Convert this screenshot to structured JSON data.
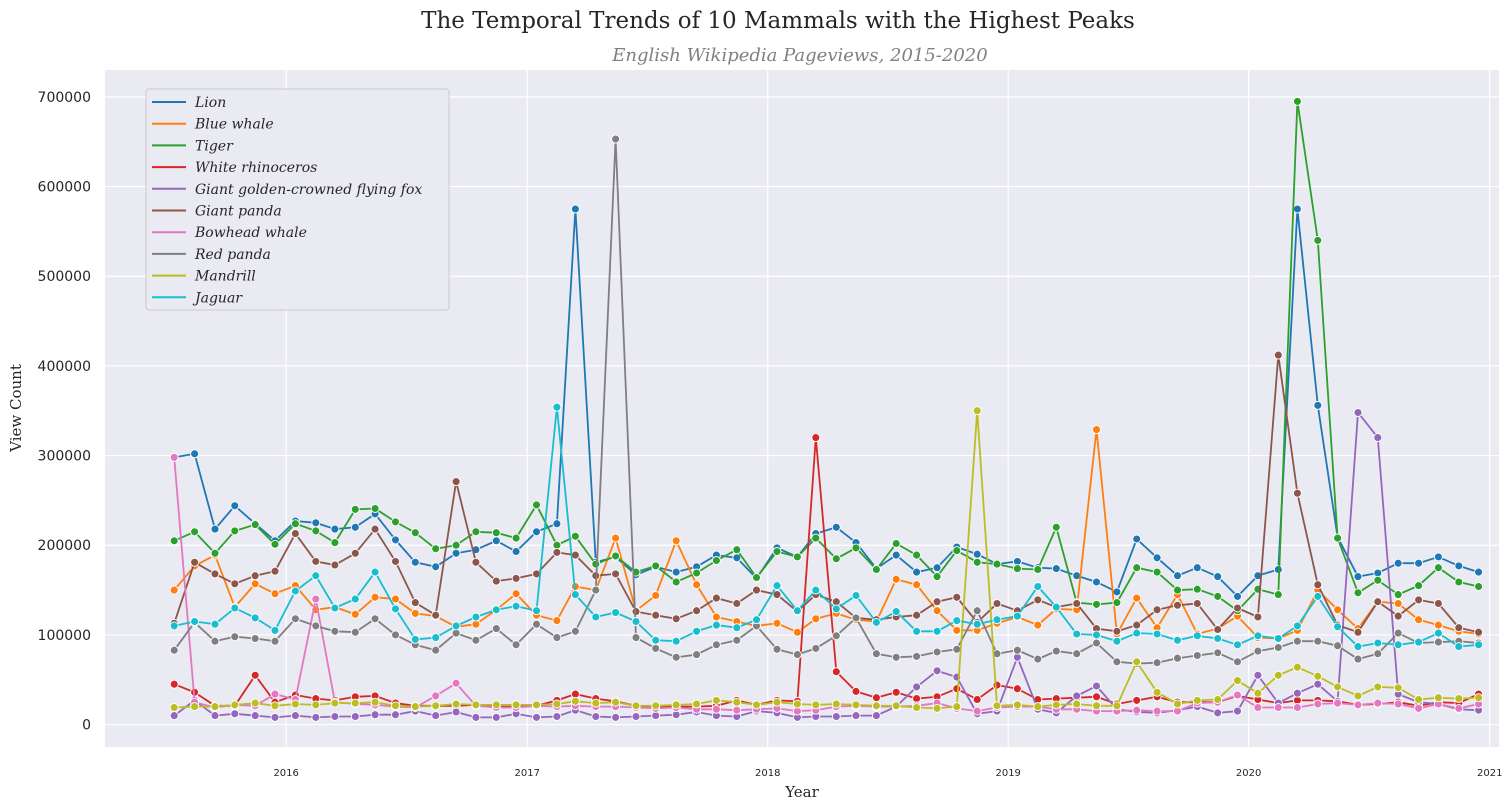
{
  "chart_data": {
    "type": "line",
    "title": "The Temporal Trends of 10 Mammals with the Highest Peaks",
    "subtitle": "English Wikipedia Pageviews, 2015-2020",
    "xlabel": "Year",
    "ylabel": "View Count",
    "ylim": [
      -25000,
      730000
    ],
    "y_ticks": [
      0,
      100000,
      200000,
      300000,
      400000,
      500000,
      600000,
      700000
    ],
    "y_tick_labels": [
      "0",
      "100000",
      "200000",
      "300000",
      "400000",
      "500000",
      "600000",
      "700000"
    ],
    "xlim": [
      "2015-04-01",
      "2021-01-15"
    ],
    "x_ticks": [
      "2016-01-01",
      "2017-01-01",
      "2018-01-01",
      "2019-01-01",
      "2020-01-01",
      "2021-01-01"
    ],
    "x_tick_labels": [
      "2016",
      "2017",
      "2018",
      "2019",
      "2020",
      "2021"
    ],
    "x": [
      "2015-07",
      "2015-08",
      "2015-09",
      "2015-10",
      "2015-11",
      "2015-12",
      "2016-01",
      "2016-02",
      "2016-03",
      "2016-04",
      "2016-05",
      "2016-06",
      "2016-07",
      "2016-08",
      "2016-09",
      "2016-10",
      "2016-11",
      "2016-12",
      "2017-01",
      "2017-02",
      "2017-03",
      "2017-04",
      "2017-05",
      "2017-06",
      "2017-07",
      "2017-08",
      "2017-09",
      "2017-10",
      "2017-11",
      "2017-12",
      "2018-01",
      "2018-02",
      "2018-03",
      "2018-04",
      "2018-05",
      "2018-06",
      "2018-07",
      "2018-08",
      "2018-09",
      "2018-10",
      "2018-11",
      "2018-12",
      "2019-01",
      "2019-02",
      "2019-03",
      "2019-04",
      "2019-05",
      "2019-06",
      "2019-07",
      "2019-08",
      "2019-09",
      "2019-10",
      "2019-11",
      "2019-12",
      "2020-01",
      "2020-02",
      "2020-03",
      "2020-04",
      "2020-05",
      "2020-06",
      "2020-07",
      "2020-08",
      "2020-09",
      "2020-10",
      "2020-11",
      "2020-12"
    ],
    "grid": true,
    "legend_position": "top-left",
    "series": [
      {
        "name": "Lion",
        "color": "#1f77b4",
        "values": [
          298000,
          302000,
          218000,
          244000,
          224000,
          205000,
          227000,
          225000,
          218000,
          220000,
          235000,
          206000,
          181000,
          176000,
          191000,
          195000,
          205000,
          193000,
          215000,
          224000,
          575000,
          181000,
          187000,
          167000,
          176000,
          170000,
          176000,
          189000,
          186000,
          163000,
          197000,
          187000,
          213000,
          220000,
          203000,
          174000,
          189000,
          170000,
          175000,
          198000,
          190000,
          179000,
          182000,
          175000,
          174000,
          166000,
          159000,
          148000,
          207000,
          186000,
          166000,
          175000,
          165000,
          143000,
          166000,
          173000,
          575000,
          356000,
          209000,
          165000,
          169000,
          180000,
          180000,
          187000,
          177000,
          170000
        ]
      },
      {
        "name": "Blue whale",
        "color": "#ff7f0e",
        "values": [
          150000,
          177000,
          189000,
          131000,
          157000,
          146000,
          155000,
          128000,
          131000,
          123000,
          142000,
          140000,
          124000,
          121000,
          109000,
          112000,
          128000,
          146000,
          122000,
          116000,
          154000,
          150000,
          208000,
          127000,
          144000,
          205000,
          156000,
          120000,
          115000,
          110000,
          113000,
          103000,
          118000,
          124000,
          117000,
          115000,
          162000,
          156000,
          127000,
          105000,
          105000,
          113000,
          120000,
          111000,
          129000,
          128000,
          329000,
          101000,
          141000,
          108000,
          145000,
          101000,
          107000,
          121000,
          97000,
          96000,
          105000,
          150000,
          128000,
          107000,
          137000,
          135000,
          117000,
          111000,
          104000,
          101000
        ]
      },
      {
        "name": "Tiger",
        "color": "#2ca02c",
        "values": [
          205000,
          215000,
          191000,
          216000,
          223000,
          201000,
          224000,
          216000,
          203000,
          240000,
          241000,
          226000,
          214000,
          196000,
          200000,
          215000,
          214000,
          208000,
          245000,
          200000,
          210000,
          179000,
          188000,
          170000,
          177000,
          159000,
          169000,
          183000,
          195000,
          164000,
          193000,
          187000,
          208000,
          185000,
          197000,
          173000,
          202000,
          189000,
          165000,
          194000,
          181000,
          179000,
          174000,
          173000,
          220000,
          136000,
          134000,
          136000,
          175000,
          170000,
          150000,
          151000,
          143000,
          127000,
          151000,
          145000,
          695000,
          540000,
          208000,
          147000,
          161000,
          145000,
          155000,
          175000,
          159000,
          154000
        ]
      },
      {
        "name": "White rhinoceros",
        "color": "#d62728",
        "values": [
          45000,
          36000,
          21000,
          21000,
          55000,
          25000,
          33000,
          29000,
          27000,
          31000,
          32000,
          24000,
          21000,
          21000,
          21000,
          22000,
          20000,
          20000,
          21000,
          27000,
          34000,
          29000,
          26000,
          21000,
          20000,
          20000,
          20000,
          21000,
          27000,
          22000,
          27000,
          26000,
          320000,
          59000,
          37000,
          30000,
          36000,
          29000,
          31000,
          40000,
          28000,
          44000,
          40000,
          28000,
          29000,
          30000,
          31000,
          23000,
          27000,
          31000,
          25000,
          25000,
          25000,
          32000,
          28000,
          24000,
          27000,
          27000,
          26000,
          22000,
          23000,
          25000,
          21000,
          25000,
          24000,
          34000
        ]
      },
      {
        "name": "Giant golden-crowned flying fox",
        "color": "#9467bd",
        "values": [
          10000,
          27000,
          10000,
          12000,
          10000,
          8000,
          10000,
          8000,
          9000,
          9000,
          11000,
          11000,
          15000,
          10000,
          14000,
          8000,
          8000,
          12000,
          8000,
          9000,
          16000,
          9000,
          8000,
          9000,
          10000,
          11000,
          14000,
          10000,
          9000,
          15000,
          13000,
          8000,
          9000,
          9000,
          10000,
          10000,
          20000,
          42000,
          60000,
          53000,
          12000,
          15000,
          75000,
          17000,
          13000,
          32000,
          43000,
          17000,
          14000,
          13000,
          16000,
          20000,
          13000,
          15000,
          55000,
          24000,
          35000,
          45000,
          26000,
          348000,
          320000,
          34000,
          25000,
          23000,
          17000,
          16000
        ]
      },
      {
        "name": "Giant panda",
        "color": "#8c564b",
        "values": [
          113000,
          181000,
          168000,
          157000,
          166000,
          171000,
          213000,
          182000,
          178000,
          191000,
          218000,
          182000,
          136000,
          122000,
          271000,
          181000,
          160000,
          163000,
          168000,
          192000,
          189000,
          166000,
          168000,
          126000,
          122000,
          118000,
          127000,
          141000,
          135000,
          150000,
          145000,
          126000,
          145000,
          137000,
          119000,
          117000,
          120000,
          122000,
          137000,
          142000,
          114000,
          135000,
          127000,
          139000,
          131000,
          135000,
          107000,
          104000,
          111000,
          128000,
          133000,
          135000,
          106000,
          130000,
          120000,
          412000,
          258000,
          156000,
          111000,
          103000,
          137000,
          121000,
          139000,
          135000,
          108000,
          103000
        ]
      },
      {
        "name": "Bowhead whale",
        "color": "#e377c2",
        "values": [
          298000,
          25000,
          19000,
          22000,
          21000,
          34000,
          28000,
          140000,
          25000,
          23000,
          22000,
          20000,
          19000,
          32000,
          46000,
          21000,
          19000,
          19000,
          21000,
          20000,
          21000,
          20000,
          20000,
          19000,
          18000,
          19000,
          17000,
          17000,
          16000,
          17000,
          18000,
          15000,
          16000,
          20000,
          21000,
          20000,
          20000,
          21000,
          24000,
          18000,
          15000,
          19000,
          20000,
          20000,
          17000,
          17000,
          15000,
          15000,
          16000,
          15000,
          15000,
          24000,
          25000,
          33000,
          19000,
          19000,
          19000,
          23000,
          24000,
          22000,
          24000,
          23000,
          18000,
          23000,
          18000,
          23000
        ]
      },
      {
        "name": "Red panda",
        "color": "#7f7f7f",
        "values": [
          83000,
          114000,
          93000,
          98000,
          96000,
          93000,
          118000,
          110000,
          104000,
          103000,
          118000,
          100000,
          89000,
          83000,
          102000,
          94000,
          107000,
          89000,
          112000,
          97000,
          104000,
          150000,
          653000,
          97000,
          85000,
          75000,
          78000,
          89000,
          94000,
          110000,
          84000,
          78000,
          85000,
          99000,
          119000,
          79000,
          75000,
          76000,
          81000,
          84000,
          127000,
          79000,
          83000,
          73000,
          82000,
          79000,
          91000,
          70000,
          68000,
          69000,
          74000,
          77000,
          80000,
          70000,
          82000,
          86000,
          93000,
          93000,
          88000,
          73000,
          79000,
          102000,
          91000,
          92000,
          93000,
          91000
        ]
      },
      {
        "name": "Mandrill",
        "color": "#bcbd22",
        "values": [
          19000,
          20000,
          20000,
          22000,
          24000,
          21000,
          23000,
          22000,
          24000,
          24000,
          25000,
          21000,
          20000,
          21000,
          23000,
          22000,
          22000,
          22000,
          22000,
          23000,
          26000,
          24000,
          25000,
          21000,
          21000,
          22000,
          23000,
          27000,
          25000,
          22000,
          25000,
          23000,
          22000,
          23000,
          22000,
          21000,
          21000,
          19000,
          18000,
          20000,
          350000,
          21000,
          22000,
          20000,
          22000,
          23000,
          21000,
          21000,
          70000,
          36000,
          23000,
          27000,
          28000,
          49000,
          35000,
          55000,
          64000,
          54000,
          42000,
          32000,
          42000,
          41000,
          28000,
          30000,
          29000,
          30000
        ]
      },
      {
        "name": "Jaguar",
        "color": "#17becf",
        "values": [
          110000,
          115000,
          112000,
          130000,
          119000,
          105000,
          149000,
          166000,
          130000,
          140000,
          170000,
          129000,
          95000,
          97000,
          110000,
          120000,
          128000,
          132000,
          127000,
          354000,
          145000,
          120000,
          125000,
          115000,
          94000,
          93000,
          104000,
          111000,
          108000,
          117000,
          155000,
          127000,
          150000,
          129000,
          144000,
          114000,
          126000,
          104000,
          104000,
          116000,
          112000,
          117000,
          121000,
          154000,
          131000,
          101000,
          100000,
          93000,
          102000,
          101000,
          94000,
          99000,
          96000,
          89000,
          99000,
          96000,
          110000,
          143000,
          109000,
          87000,
          91000,
          89000,
          92000,
          102000,
          87000,
          89000
        ]
      }
    ]
  }
}
